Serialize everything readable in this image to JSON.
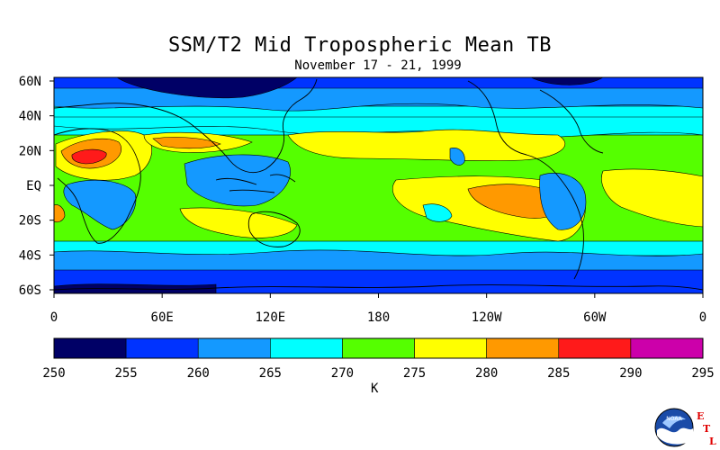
{
  "title": "SSM/T2 Mid Tropospheric Mean TB",
  "subtitle": "November 17 - 21, 1999",
  "lat_labels": [
    "60N",
    "40N",
    "20N",
    "EQ",
    "20S",
    "40S",
    "60S"
  ],
  "lon_labels": [
    "0",
    "60E",
    "120E",
    "180",
    "120W",
    "60W",
    "0"
  ],
  "colorbar": {
    "values": [
      "250",
      "255",
      "260",
      "265",
      "270",
      "275",
      "280",
      "285",
      "290",
      "295"
    ],
    "colors": [
      "#000066",
      "#0033ff",
      "#1499ff",
      "#00ffff",
      "#55ff00",
      "#ffff00",
      "#ff9900",
      "#ff1a1a",
      "#cc00aa"
    ],
    "unit": "K"
  },
  "colors": {
    "band_60s": "#0033ff",
    "band_50s": "#1499ff",
    "band_40s": "#00ffff",
    "band_30s": "#55ff00",
    "band_tropics": "#55ff00",
    "band_40n": "#00ffff",
    "band_50n": "#1499ff",
    "band_60n": "#0033ff",
    "polar_core": "#000066",
    "warm": "#ffff00",
    "hot": "#ff9900",
    "very_hot": "#ff1a1a",
    "coast": "#000000"
  },
  "logo": {
    "name": "NOAA",
    "letters": [
      "E",
      "T",
      "L"
    ]
  }
}
